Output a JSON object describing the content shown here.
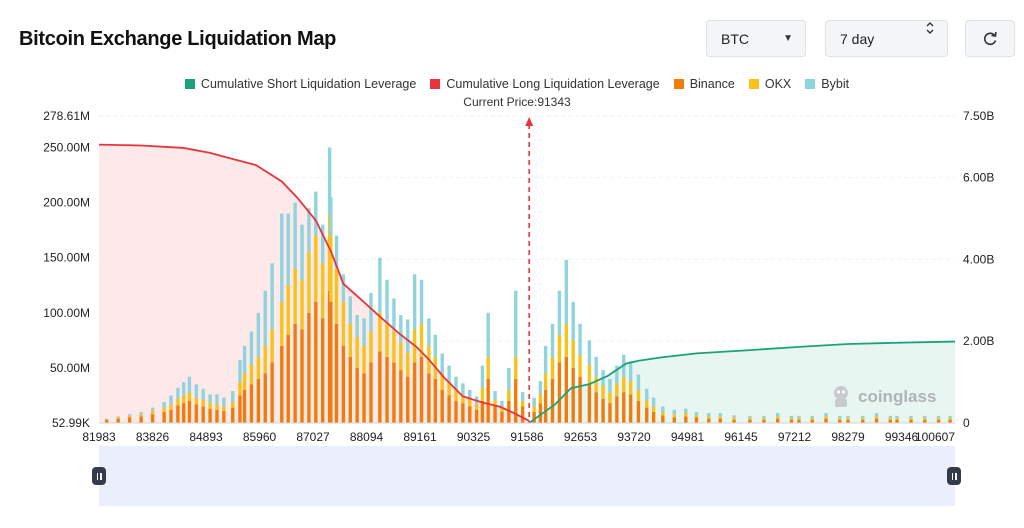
{
  "header": {
    "title": "Bitcoin Exchange Liquidation Map",
    "coin_select": "BTC",
    "period_select": "7 day"
  },
  "icons": {
    "caret": "chevron-down-icon",
    "spinner": "chevron-updown-icon",
    "refresh": "refresh-icon"
  },
  "watermark": {
    "text": "coinglass"
  },
  "chart_data": {
    "type": "bar",
    "title": "Bitcoin Exchange Liquidation Map",
    "current_price_label": "Current Price:91343",
    "current_price": 91343,
    "legend": [
      {
        "name": "Cumulative Short Liquidation Leverage",
        "color": "#1aa37a"
      },
      {
        "name": "Cumulative Long Liquidation Leverage",
        "color": "#e8343d"
      },
      {
        "name": "Binance",
        "color": "#f07c0c"
      },
      {
        "name": "OKX",
        "color": "#f7c21a"
      },
      {
        "name": "Bybit",
        "color": "#8fd3dc"
      }
    ],
    "x_range": [
      81983,
      100607
    ],
    "x_tick_labels": [
      "81983",
      "83826",
      "84893",
      "85960",
      "87027",
      "88094",
      "89161",
      "90325",
      "91586",
      "92653",
      "93720",
      "94981",
      "96145",
      "97212",
      "98279",
      "99346",
      "100607"
    ],
    "left_axis": {
      "range": [
        0,
        278610000
      ],
      "ticks": [
        {
          "value": 52990,
          "label": "52.99K"
        },
        {
          "value": 50000000,
          "label": "50.00M"
        },
        {
          "value": 100000000,
          "label": "100.00M"
        },
        {
          "value": 150000000,
          "label": "150.00M"
        },
        {
          "value": 200000000,
          "label": "200.00M"
        },
        {
          "value": 250000000,
          "label": "250.00M"
        },
        {
          "value": 278610000,
          "label": "278.61M"
        }
      ]
    },
    "right_axis": {
      "range": [
        0,
        7500000000
      ],
      "ticks": [
        {
          "value": 0,
          "label": "0"
        },
        {
          "value": 2000000000,
          "label": "2.00B"
        },
        {
          "value": 4000000000,
          "label": "4.00B"
        },
        {
          "value": 6000000000,
          "label": "6.00B"
        },
        {
          "value": 7500000000,
          "label": "7.50B"
        }
      ]
    },
    "bar_series_note": "stacked bars per price level, values in USD (Binance bottom, OKX middle, Bybit top)",
    "bars": [
      [
        82150,
        3,
        0.5,
        0.5
      ],
      [
        82400,
        4,
        1,
        1
      ],
      [
        82650,
        5,
        1.5,
        1.5
      ],
      [
        82900,
        6,
        2,
        2
      ],
      [
        83150,
        8,
        3,
        3
      ],
      [
        83400,
        10,
        4,
        5
      ],
      [
        83550,
        12,
        5,
        8
      ],
      [
        83700,
        16,
        6,
        10
      ],
      [
        83826,
        18,
        7,
        12
      ],
      [
        83950,
        20,
        8,
        14
      ],
      [
        84100,
        17,
        6,
        12
      ],
      [
        84250,
        15,
        6,
        10
      ],
      [
        84400,
        13,
        5,
        8
      ],
      [
        84550,
        12,
        5,
        9
      ],
      [
        84700,
        11,
        4,
        8
      ],
      [
        84893,
        14,
        5,
        10
      ],
      [
        85050,
        25,
        12,
        20
      ],
      [
        85150,
        30,
        15,
        25
      ],
      [
        85300,
        35,
        18,
        30
      ],
      [
        85450,
        40,
        20,
        40
      ],
      [
        85600,
        45,
        25,
        50
      ],
      [
        85750,
        55,
        30,
        60
      ],
      [
        85960,
        70,
        40,
        80
      ],
      [
        86100,
        80,
        45,
        65
      ],
      [
        86250,
        90,
        50,
        60
      ],
      [
        86400,
        85,
        45,
        50
      ],
      [
        86550,
        100,
        55,
        40
      ],
      [
        86700,
        110,
        60,
        40
      ],
      [
        86850,
        95,
        50,
        35
      ],
      [
        87000,
        120,
        70,
        60
      ],
      [
        87027,
        110,
        60,
        35
      ],
      [
        87150,
        90,
        50,
        30
      ],
      [
        87300,
        70,
        40,
        25
      ],
      [
        87450,
        60,
        30,
        25
      ],
      [
        87600,
        50,
        28,
        20
      ],
      [
        87750,
        45,
        25,
        25
      ],
      [
        87900,
        55,
        28,
        35
      ],
      [
        88094,
        65,
        35,
        50
      ],
      [
        88250,
        60,
        30,
        40
      ],
      [
        88400,
        55,
        28,
        30
      ],
      [
        88550,
        48,
        25,
        25
      ],
      [
        88700,
        42,
        22,
        30
      ],
      [
        88850,
        55,
        30,
        50
      ],
      [
        89000,
        60,
        30,
        40
      ],
      [
        89161,
        45,
        25,
        25
      ],
      [
        89300,
        40,
        20,
        20
      ],
      [
        89450,
        30,
        15,
        18
      ],
      [
        89600,
        25,
        12,
        15
      ],
      [
        89750,
        20,
        10,
        12
      ],
      [
        89900,
        18,
        8,
        10
      ],
      [
        90050,
        15,
        7,
        8
      ],
      [
        90200,
        12,
        5,
        7
      ],
      [
        90325,
        20,
        12,
        20
      ],
      [
        90450,
        40,
        20,
        40
      ],
      [
        90600,
        15,
        6,
        8
      ],
      [
        90750,
        10,
        4,
        6
      ],
      [
        90900,
        20,
        10,
        20
      ],
      [
        91050,
        40,
        20,
        60
      ],
      [
        91200,
        15,
        5,
        8
      ],
      [
        91450,
        10,
        5,
        8
      ],
      [
        91586,
        18,
        8,
        12
      ],
      [
        91700,
        30,
        15,
        25
      ],
      [
        91850,
        40,
        20,
        30
      ],
      [
        92000,
        55,
        25,
        40
      ],
      [
        92150,
        60,
        30,
        58
      ],
      [
        92300,
        50,
        25,
        35
      ],
      [
        92450,
        42,
        20,
        28
      ],
      [
        92653,
        35,
        18,
        22
      ],
      [
        92800,
        28,
        14,
        18
      ],
      [
        92950,
        22,
        12,
        14
      ],
      [
        93100,
        18,
        10,
        12
      ],
      [
        93250,
        24,
        12,
        16
      ],
      [
        93400,
        28,
        14,
        20
      ],
      [
        93550,
        26,
        12,
        18
      ],
      [
        93720,
        20,
        10,
        14
      ],
      [
        93900,
        14,
        7,
        10
      ],
      [
        94050,
        10,
        5,
        8
      ],
      [
        94250,
        7,
        3,
        5
      ],
      [
        94500,
        5,
        3,
        4
      ],
      [
        94750,
        6,
        3,
        4
      ],
      [
        94981,
        5,
        2,
        3
      ],
      [
        95250,
        4,
        2,
        3
      ],
      [
        95500,
        4,
        2,
        3
      ],
      [
        95800,
        3,
        2,
        2
      ],
      [
        96145,
        3,
        1.5,
        2
      ],
      [
        96450,
        3,
        1.5,
        2
      ],
      [
        96750,
        4,
        2,
        3
      ],
      [
        97050,
        3,
        1.5,
        2
      ],
      [
        97212,
        3,
        1.5,
        2
      ],
      [
        97500,
        3,
        1.5,
        2
      ],
      [
        97800,
        4,
        2,
        3
      ],
      [
        98100,
        3,
        1.5,
        2
      ],
      [
        98279,
        3,
        1.5,
        2
      ],
      [
        98600,
        3,
        1.5,
        2
      ],
      [
        98900,
        4,
        2,
        3
      ],
      [
        99200,
        3,
        1.5,
        2
      ],
      [
        99346,
        3,
        1.5,
        2
      ],
      [
        99650,
        3,
        1.5,
        2
      ],
      [
        99950,
        3,
        1.5,
        2
      ],
      [
        100250,
        3,
        1.5,
        2
      ],
      [
        100500,
        3,
        1.5,
        2
      ]
    ],
    "bars_unit": "millions USD",
    "long_cumulative_line": {
      "unit": "billions USD (right axis)",
      "points": [
        [
          81983,
          6.8
        ],
        [
          82900,
          6.78
        ],
        [
          83826,
          6.72
        ],
        [
          84400,
          6.6
        ],
        [
          84893,
          6.45
        ],
        [
          85400,
          6.3
        ],
        [
          85960,
          5.9
        ],
        [
          86300,
          5.5
        ],
        [
          86700,
          4.95
        ],
        [
          87027,
          4.2
        ],
        [
          87300,
          3.4
        ],
        [
          87700,
          3.0
        ],
        [
          88094,
          2.6
        ],
        [
          88500,
          2.2
        ],
        [
          88900,
          1.85
        ],
        [
          89161,
          1.55
        ],
        [
          89500,
          1.1
        ],
        [
          89900,
          0.65
        ],
        [
          90325,
          0.5
        ],
        [
          90700,
          0.4
        ],
        [
          91000,
          0.25
        ],
        [
          91343,
          0.05
        ]
      ]
    },
    "short_cumulative_line": {
      "unit": "billions USD (right axis)",
      "points": [
        [
          91343,
          0.0
        ],
        [
          91586,
          0.2
        ],
        [
          91900,
          0.45
        ],
        [
          92250,
          0.85
        ],
        [
          92653,
          0.95
        ],
        [
          93050,
          1.15
        ],
        [
          93450,
          1.45
        ],
        [
          93720,
          1.52
        ],
        [
          94200,
          1.6
        ],
        [
          94981,
          1.7
        ],
        [
          96145,
          1.78
        ],
        [
          97212,
          1.86
        ],
        [
          98279,
          1.93
        ],
        [
          99346,
          1.96
        ],
        [
          100607,
          1.99
        ]
      ]
    }
  }
}
